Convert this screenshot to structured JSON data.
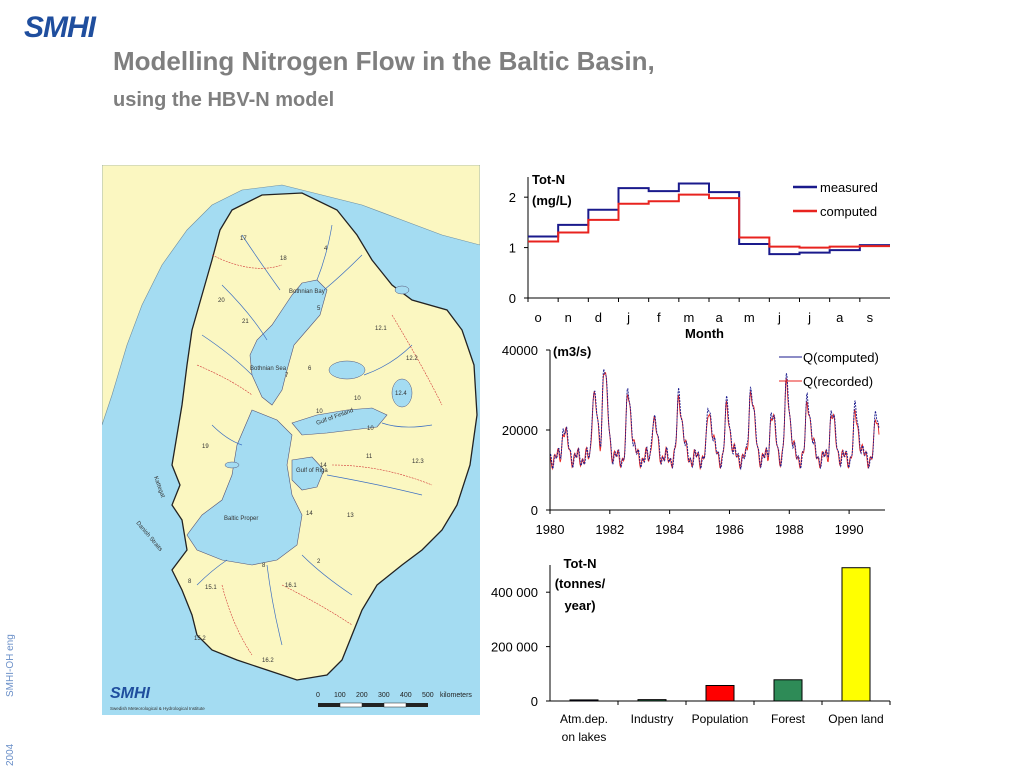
{
  "header": {
    "logo": "SMHI",
    "title": "Modelling Nitrogen Flow in the Baltic Basin,",
    "subtitle": "using the HBV-N model"
  },
  "footer": {
    "side_label": "SMHI-OH eng",
    "year": "2004"
  },
  "map": {
    "sea_labels": [
      "Bothnian Bay",
      "Bothnian Sea",
      "Gulf of Finland",
      "Gulf of Riga",
      "Baltic Proper",
      "Kattegat",
      "Danish Straits"
    ],
    "region_numbers": [
      "17",
      "4",
      "18",
      "20",
      "21",
      "5",
      "12.1",
      "12.2",
      "7",
      "6",
      "12.4",
      "10",
      "10",
      "10",
      "19",
      "11",
      "12.3",
      "14",
      "14",
      "13",
      "2",
      "8",
      "8",
      "15.1",
      "16.1",
      "15.2",
      "16.2"
    ],
    "logo": "SMHI",
    "institute": "Swedish Meteorological & Hydrological Institute",
    "scale_ticks": [
      "0",
      "100",
      "200",
      "300",
      "400",
      "500"
    ],
    "scale_unit": "kilometers",
    "colors": {
      "sea": "#a4dcf2",
      "land": "#fbf7c1",
      "basin_border": "#222222",
      "rivers": "#3b6ec2",
      "subbasin": "#d23a3a"
    }
  },
  "chart_data": [
    {
      "type": "line",
      "step": true,
      "ylabel": "Tot-N (mg/L)",
      "ylabel_lines": [
        "Tot-N",
        "(mg/L)"
      ],
      "xlabel": "Month",
      "categories": [
        "o",
        "n",
        "d",
        "j",
        "f",
        "m",
        "a",
        "m",
        "j",
        "j",
        "a",
        "s"
      ],
      "ylim": [
        0,
        2.4
      ],
      "yticks": [
        0,
        1,
        2
      ],
      "series": [
        {
          "name": "measured",
          "color": "#1a1a8c",
          "values": [
            1.22,
            1.45,
            1.75,
            2.18,
            2.12,
            2.27,
            2.1,
            1.07,
            0.87,
            0.9,
            0.95,
            1.05
          ]
        },
        {
          "name": "computed",
          "color": "#e8231f",
          "values": [
            1.12,
            1.3,
            1.55,
            1.87,
            1.92,
            2.05,
            1.98,
            1.2,
            1.02,
            1.0,
            1.02,
            1.03
          ]
        }
      ],
      "legend": "top-right"
    },
    {
      "type": "line",
      "ylabel": "(m3/s)",
      "xlim": [
        1980,
        1991.2
      ],
      "ylim": [
        0,
        40000
      ],
      "yticks": [
        0,
        20000,
        40000
      ],
      "xticks": [
        1980,
        1982,
        1984,
        1986,
        1988,
        1990
      ],
      "series": [
        {
          "name": "Q(computed)",
          "color": "#1a1a8c"
        },
        {
          "name": "Q(recorded)",
          "color": "#e8231f"
        }
      ],
      "peaks": [
        {
          "year": 1980.45,
          "computed": 21000,
          "recorded": 20000
        },
        {
          "year": 1981.45,
          "computed": 30000,
          "recorded": 29000
        },
        {
          "year": 1981.8,
          "computed": 36000,
          "recorded": 35000
        },
        {
          "year": 1982.6,
          "computed": 29000,
          "recorded": 28500
        },
        {
          "year": 1983.45,
          "computed": 23000,
          "recorded": 22000
        },
        {
          "year": 1984.3,
          "computed": 29000,
          "recorded": 28000
        },
        {
          "year": 1985.3,
          "computed": 26000,
          "recorded": 25000
        },
        {
          "year": 1985.9,
          "computed": 26000,
          "recorded": 25000
        },
        {
          "year": 1986.7,
          "computed": 31000,
          "recorded": 30000
        },
        {
          "year": 1987.4,
          "computed": 25000,
          "recorded": 24000
        },
        {
          "year": 1987.9,
          "computed": 32000,
          "recorded": 31000
        },
        {
          "year": 1988.6,
          "computed": 28000,
          "recorded": 27000
        },
        {
          "year": 1989.4,
          "computed": 25000,
          "recorded": 24000
        },
        {
          "year": 1990.2,
          "computed": 25000,
          "recorded": 23500
        },
        {
          "year": 1990.9,
          "computed": 24000,
          "recorded": 23000
        }
      ],
      "base_flow": 13000,
      "legend": "top-right"
    },
    {
      "type": "bar",
      "ylabel": "Tot-N (tonnes/year)",
      "ylabel_lines": [
        "Tot-N",
        "(tonnes/",
        "year)"
      ],
      "categories": [
        "Atm.dep. on lakes",
        "Industry",
        "Population",
        "Forest",
        "Open land"
      ],
      "category_lines": [
        [
          "Atm.dep.",
          "on lakes"
        ],
        [
          "Industry"
        ],
        [
          "Population"
        ],
        [
          "Forest"
        ],
        [
          "Open land"
        ]
      ],
      "values": [
        4000,
        5000,
        57000,
        78000,
        490000
      ],
      "colors": [
        "#1a1a8c",
        "#2e8b57",
        "#ff0000",
        "#2e8b57",
        "#ffff00"
      ],
      "ylim": [
        0,
        500000
      ],
      "yticks": [
        0,
        200000,
        400000
      ],
      "ytick_labels": [
        "0",
        "200 000",
        "400 000"
      ]
    }
  ]
}
